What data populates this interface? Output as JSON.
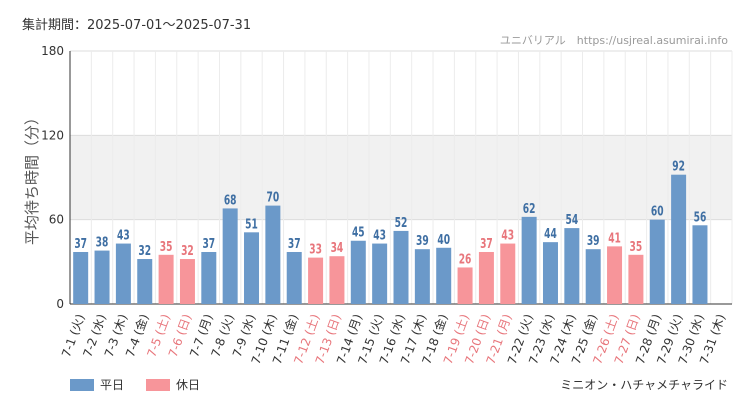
{
  "header": {
    "period": "集計期間：2025-07-01～2025-07-31",
    "source": "ユニバリアル　https://usjreal.asumirai.info"
  },
  "footer": {
    "attraction": "ミニオン・ハチャメチャライド"
  },
  "colors": {
    "weekday": "#6b99c9",
    "holiday": "#f7959a",
    "holiday_text": "#e8767c",
    "weekday_text": "#3f6fa3"
  },
  "chart_data": {
    "type": "bar",
    "ylabel": "平均待ち時間（分）",
    "ylim": [
      0,
      180
    ],
    "yticks": [
      "0",
      "60",
      "120",
      "180"
    ],
    "legend": [
      {
        "name": "平日",
        "color": "#6b99c9"
      },
      {
        "name": "休日",
        "color": "#f7959a"
      }
    ],
    "categories": [
      "7-1 (火)",
      "7-2 (水)",
      "7-3 (木)",
      "7-4 (金)",
      "7-5 (土)",
      "7-6 (日)",
      "7-7 (月)",
      "7-8 (火)",
      "7-9 (水)",
      "7-10 (木)",
      "7-11 (金)",
      "7-12 (土)",
      "7-13 (日)",
      "7-14 (月)",
      "7-15 (火)",
      "7-16 (水)",
      "7-17 (木)",
      "7-18 (金)",
      "7-19 (土)",
      "7-20 (日)",
      "7-21 (月)",
      "7-22 (火)",
      "7-23 (水)",
      "7-24 (木)",
      "7-25 (金)",
      "7-26 (土)",
      "7-27 (日)",
      "7-28 (月)",
      "7-29 (火)",
      "7-30 (水)",
      "7-31 (木)"
    ],
    "values": [
      37,
      38,
      43,
      32,
      35,
      32,
      37,
      68,
      51,
      70,
      37,
      33,
      34,
      45,
      43,
      52,
      39,
      40,
      26,
      37,
      43,
      62,
      44,
      54,
      39,
      41,
      35,
      60,
      92,
      56,
      null
    ],
    "holiday": [
      false,
      false,
      false,
      false,
      true,
      true,
      false,
      false,
      false,
      false,
      false,
      true,
      true,
      false,
      false,
      false,
      false,
      false,
      true,
      true,
      true,
      false,
      false,
      false,
      false,
      true,
      true,
      false,
      false,
      false,
      false
    ]
  }
}
